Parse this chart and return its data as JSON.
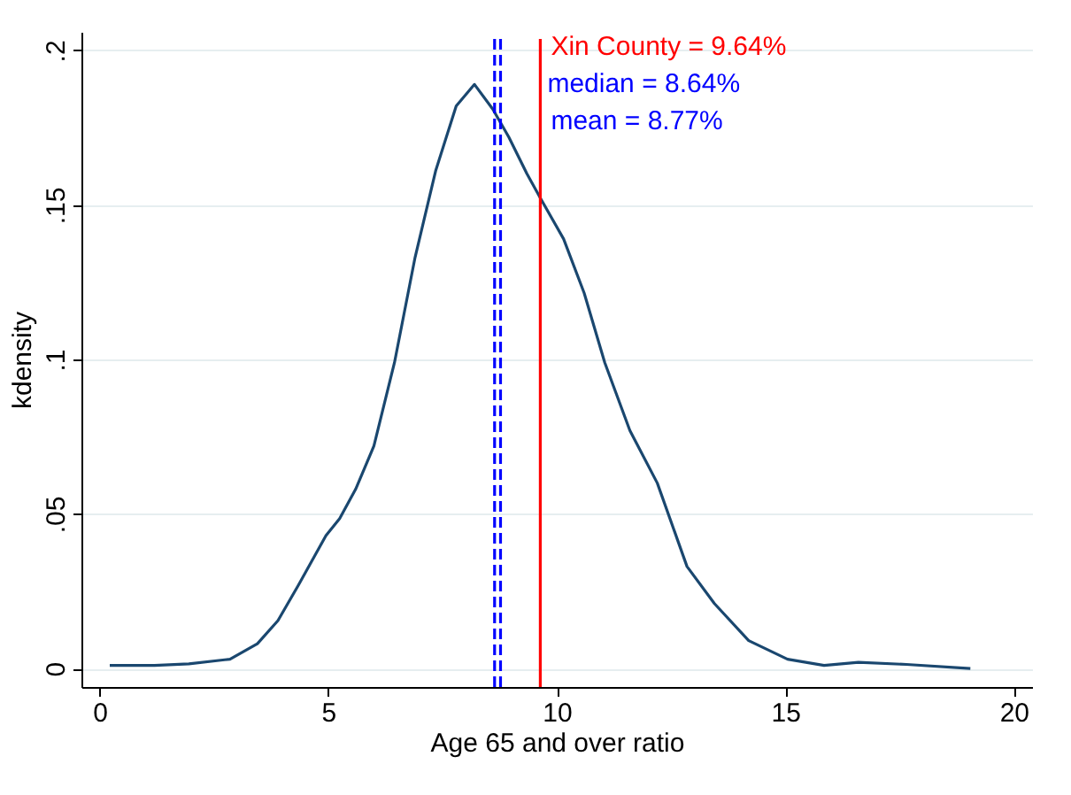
{
  "chart_data": {
    "type": "line",
    "xlabel": "Age 65 and over ratio",
    "ylabel": "kdensity",
    "xlim": [
      -0.4,
      20.4
    ],
    "xticks": [
      0,
      5,
      10,
      15,
      20
    ],
    "ylim": [
      -0.006,
      0.206
    ],
    "yticks": [
      {
        "value": 0,
        "label": "0"
      },
      {
        "value": 0.05,
        "label": ".05"
      },
      {
        "value": 0.1,
        "label": ".1"
      },
      {
        "value": 0.15,
        "label": ".15"
      },
      {
        "value": 0.2,
        "label": ".2"
      }
    ],
    "grid": "y",
    "legend": false,
    "marker": "none",
    "line_style": "solid",
    "x": [
      0.22,
      1.2,
      1.95,
      2.85,
      3.45,
      3.9,
      4.35,
      4.95,
      5.25,
      5.6,
      6.0,
      6.45,
      6.9,
      7.35,
      7.8,
      8.2,
      8.6,
      8.95,
      9.35,
      9.65,
      10.15,
      10.6,
      11.05,
      11.6,
      12.2,
      12.85,
      13.45,
      14.2,
      15.05,
      15.85,
      16.6,
      17.65,
      19.05
    ],
    "series": [
      {
        "color": "#1a476f",
        "values": [
          0.001,
          0.001,
          0.0015,
          0.003,
          0.008,
          0.0155,
          0.027,
          0.043,
          0.0485,
          0.058,
          0.072,
          0.099,
          0.133,
          0.161,
          0.182,
          0.189,
          0.181,
          0.172,
          0.16,
          0.152,
          0.139,
          0.1215,
          0.099,
          0.077,
          0.06,
          0.033,
          0.021,
          0.009,
          0.003,
          0.001,
          0.002,
          0.0013,
          0.0
        ]
      }
    ],
    "ref_lines": [
      {
        "axis": "x",
        "value": 9.64,
        "label": "Xin County = 9.64%",
        "color": "#ff0000",
        "line_style": "solid"
      },
      {
        "axis": "x",
        "value": 8.64,
        "label": "median = 8.64%",
        "color": "#0000ff",
        "line_style": "dashed"
      },
      {
        "axis": "x",
        "value": 8.77,
        "label": "mean = 8.77%",
        "color": "#0000ff",
        "line_style": "dashed"
      }
    ]
  }
}
